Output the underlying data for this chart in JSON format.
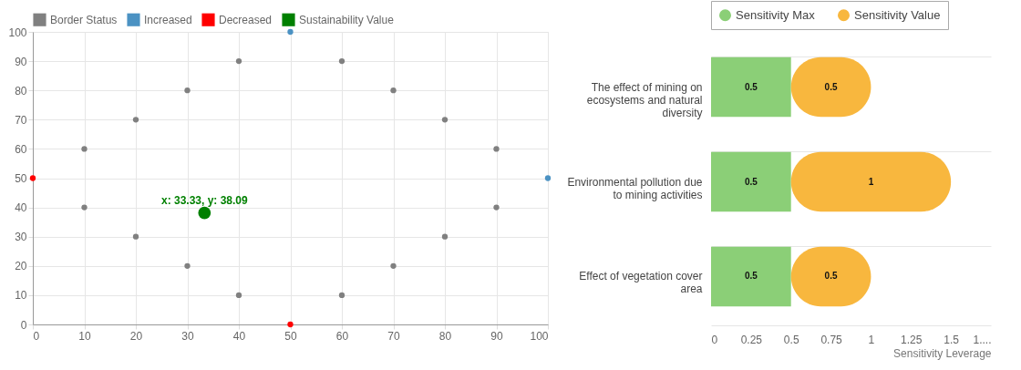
{
  "chart_data": [
    {
      "type": "scatter",
      "legend": "top",
      "grid": true,
      "marker": "circle",
      "xlim": [
        0,
        100
      ],
      "xticks": [
        0,
        10,
        20,
        30,
        40,
        50,
        60,
        70,
        80,
        90,
        100
      ],
      "ylim": [
        0,
        100
      ],
      "yticks": [
        0,
        10,
        20,
        30,
        40,
        50,
        60,
        70,
        80,
        90,
        100
      ],
      "series": [
        {
          "name": "Border Status",
          "color": "#808080",
          "x": [
            10,
            20,
            30,
            40,
            60,
            70,
            80,
            90,
            90,
            80,
            70,
            60,
            40,
            30,
            20,
            10
          ],
          "values": [
            60,
            70,
            80,
            90,
            90,
            80,
            70,
            60,
            40,
            30,
            20,
            10,
            10,
            20,
            30,
            40
          ]
        },
        {
          "name": "Increased",
          "color": "#4b92c3",
          "x": [
            50,
            100
          ],
          "values": [
            100,
            50
          ]
        },
        {
          "name": "Decreased",
          "color": "#ff0000",
          "x": [
            0,
            50
          ],
          "values": [
            50,
            0
          ]
        },
        {
          "name": "Sustainability Value",
          "color": "#008000",
          "x": [
            33.33
          ],
          "values": [
            38.09
          ]
        }
      ],
      "annotations": [
        {
          "text": "x: 33.33, y: 38.09",
          "x": 33.33,
          "y": 38.09
        }
      ]
    },
    {
      "type": "bar",
      "orientation": "horizontal",
      "stacked": true,
      "legend": "top",
      "grid": "y",
      "data_labels": true,
      "xlabel": "Sensitivity Leverage",
      "categories": [
        "The effect of mining on ecosystems and natural diversity",
        "Environmental pollution due to mining activities",
        "Effect of vegetation cover area"
      ],
      "xlim": [
        0,
        1.75
      ],
      "xticks": [
        0,
        0.25,
        0.5,
        0.75,
        1,
        1.25,
        1.5,
        {
          "value": 1.75,
          "label": "1...."
        }
      ],
      "series": [
        {
          "name": "Sensitivity Max",
          "color": "#8bcf77",
          "values": [
            0.5,
            0.5,
            0.5
          ]
        },
        {
          "name": "Sensitivity Value",
          "color": "#f8b73e",
          "values": [
            0.5,
            1,
            0.5
          ]
        }
      ]
    }
  ]
}
